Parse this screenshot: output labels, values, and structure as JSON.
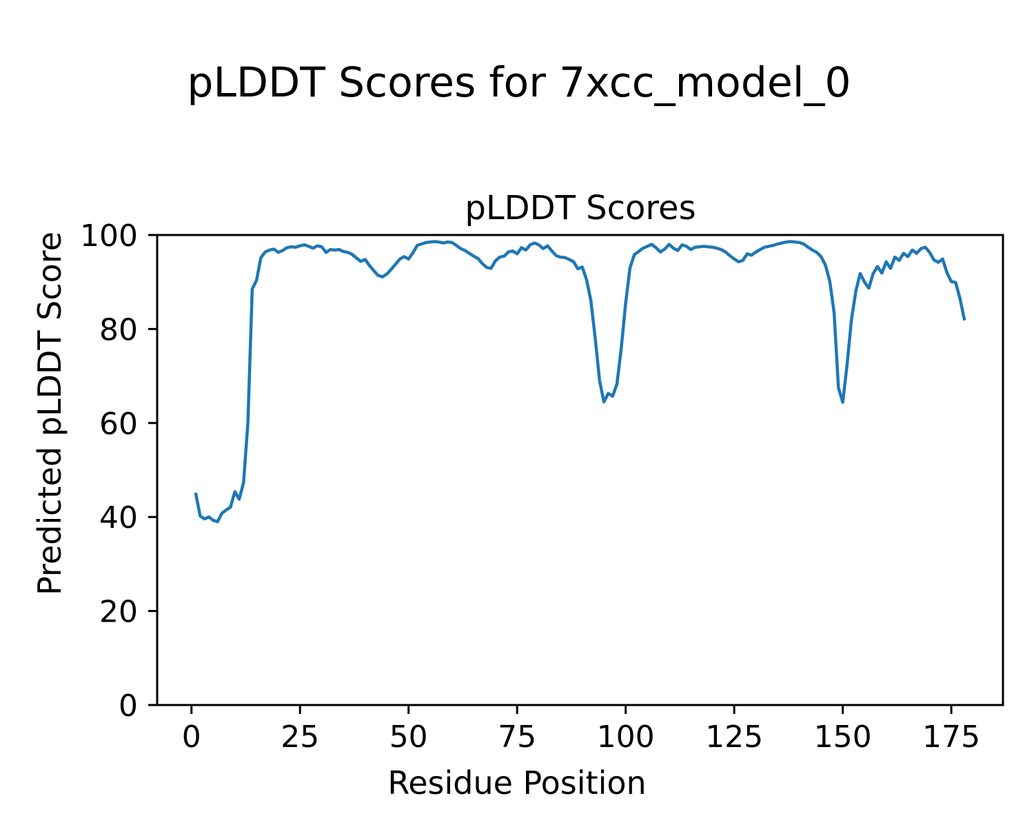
{
  "figure": {
    "suptitle": "pLDDT Scores for 7xcc_model_0",
    "axes_title": "pLDDT Scores",
    "xlabel": "Residue Position",
    "ylabel": "Predicted pLDDT Score"
  },
  "chart_data": {
    "type": "line",
    "title": "pLDDT Scores",
    "suptitle": "pLDDT Scores for 7xcc_model_0",
    "xlabel": "Residue Position",
    "ylabel": "Predicted pLDDT Score",
    "series_name": "pLDDT",
    "line_color": "#1f77b4",
    "line_width": 4.5,
    "grid": false,
    "legend": "none",
    "xlim": [
      -7.9,
      186.9
    ],
    "ylim": [
      0,
      100
    ],
    "xticks": [
      0,
      25,
      50,
      75,
      100,
      125,
      150,
      175
    ],
    "yticks": [
      0,
      20,
      40,
      60,
      80,
      100
    ],
    "x_start": 1,
    "x_step": 1,
    "values": [
      44.9,
      40.2,
      39.6,
      40.0,
      39.3,
      39.0,
      40.8,
      41.5,
      42.1,
      45.4,
      43.8,
      47.3,
      60.0,
      88.5,
      90.4,
      95.2,
      96.4,
      96.8,
      97.0,
      96.3,
      96.7,
      97.3,
      97.5,
      97.4,
      97.7,
      97.9,
      97.6,
      97.2,
      97.7,
      97.5,
      96.3,
      96.9,
      96.8,
      96.9,
      96.5,
      96.3,
      95.9,
      95.1,
      94.4,
      94.8,
      93.5,
      92.4,
      91.4,
      91.1,
      91.7,
      92.7,
      93.8,
      94.9,
      95.4,
      94.9,
      96.2,
      97.8,
      98.1,
      98.4,
      98.5,
      98.6,
      98.5,
      98.3,
      98.5,
      98.4,
      97.8,
      97.1,
      96.7,
      96.1,
      95.5,
      95.0,
      93.9,
      93.1,
      92.9,
      94.5,
      95.3,
      95.5,
      96.4,
      96.6,
      96.0,
      97.3,
      96.8,
      97.9,
      98.3,
      97.9,
      97.1,
      97.7,
      96.6,
      95.6,
      95.3,
      95.2,
      94.8,
      94.3,
      92.8,
      93.2,
      90.5,
      86.0,
      78.0,
      69.0,
      64.5,
      66.3,
      65.7,
      68.3,
      76.0,
      85.5,
      93.0,
      95.8,
      96.5,
      97.2,
      97.6,
      98.0,
      97.3,
      96.4,
      97.0,
      98.0,
      97.2,
      96.7,
      97.9,
      97.6,
      96.9,
      97.4,
      97.5,
      97.6,
      97.5,
      97.4,
      97.2,
      96.9,
      96.4,
      95.6,
      94.9,
      94.3,
      94.6,
      96.0,
      95.7,
      96.4,
      96.9,
      97.4,
      97.6,
      97.8,
      98.1,
      98.3,
      98.5,
      98.6,
      98.5,
      98.4,
      98.1,
      97.4,
      96.8,
      96.3,
      95.4,
      93.6,
      90.2,
      83.5,
      67.5,
      64.4,
      72.5,
      82.0,
      88.0,
      91.8,
      90.0,
      88.7,
      91.8,
      93.3,
      91.9,
      94.3,
      92.9,
      95.3,
      94.6,
      96.1,
      95.4,
      96.8,
      96.1,
      97.1,
      97.4,
      96.3,
      94.7,
      94.2,
      94.9,
      92.0,
      90.1,
      89.9,
      86.5,
      82.1
    ]
  }
}
